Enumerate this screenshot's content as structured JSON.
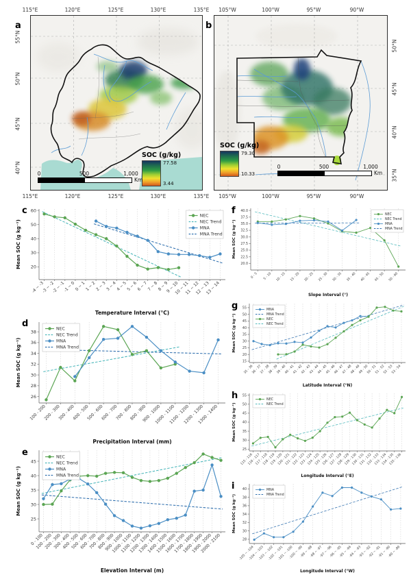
{
  "colors": {
    "nec": "#5ba553",
    "nec_trend": "#49b6ba",
    "mna": "#4a8ec4",
    "mna_trend": "#2f6fae",
    "sea": "#a9dbd2",
    "river": "#5b9bd5",
    "grid": "#d9d9d9",
    "spine": "#7f7f7f"
  },
  "maps": {
    "a": {
      "panel_label": "a",
      "top_ticks": [
        "115°E",
        "120°E",
        "125°E",
        "130°E",
        "135°E"
      ],
      "bottom_ticks": [
        "115°E",
        "120°E",
        "125°E",
        "130°E",
        "135°E"
      ],
      "left_ticks": [
        "55°N",
        "50°N",
        "45°N",
        "40°N"
      ],
      "legend": {
        "title": "SOC (g/kg)",
        "max": "77.58",
        "min": "3.44"
      },
      "scalebar": {
        "labels": [
          "0",
          "500",
          "1,000"
        ],
        "unit": "Km"
      }
    },
    "b": {
      "panel_label": "b",
      "top_ticks": [
        "105°W",
        "100°W",
        "95°W",
        "90°W"
      ],
      "bottom_ticks": [
        "105°W",
        "100°W",
        "95°W",
        "90°W"
      ],
      "right_ticks": [
        "50°N",
        "45°N",
        "40°N",
        "35°N"
      ],
      "legend": {
        "title": "SOC (g/kg)",
        "max": "79.30",
        "min": "10.33"
      },
      "scalebar": {
        "labels": [
          "0",
          "500",
          "1,000"
        ],
        "unit": "Km"
      }
    }
  },
  "chart_data": [
    {
      "panel": "c",
      "type": "line",
      "xlabel": "Temperature Interval (°C)",
      "ylabel": "Mean SOC (g kg⁻¹)",
      "ylim": [
        11,
        61
      ],
      "yticks": [
        20,
        30,
        40,
        50,
        60
      ],
      "ytick_decimals": 0,
      "categories": [
        "-4 ~ -3",
        "-3 ~ -2",
        "-2 ~ -1",
        "-1 ~ 0",
        "0 ~ 1",
        "1 ~ 2",
        "2 ~ 3",
        "3 ~ 4",
        "4 ~ 5",
        "5 ~ 6",
        "6 ~ 7",
        "7 ~ 8",
        "8 ~ 9",
        "9 ~ 10",
        "10 ~ 11",
        "11 ~ 12",
        "12 ~ 13",
        "13 ~ 14"
      ],
      "series": [
        {
          "name": "NEC",
          "color_key": "nec",
          "values": [
            57.5,
            55.5,
            54.8,
            50.3,
            46.0,
            42.8,
            40.0,
            34.8,
            27.5,
            21.2,
            18.5,
            19.5,
            18.2,
            19.4,
            null,
            null,
            null,
            null
          ]
        },
        {
          "name": "MNA",
          "color_key": "mna",
          "values": [
            null,
            null,
            null,
            null,
            null,
            52.5,
            48.7,
            47.5,
            44.5,
            41.8,
            38.8,
            30.8,
            29.2,
            28.8,
            28.8,
            28.0,
            26.8,
            29.2
          ]
        }
      ],
      "trends": [
        {
          "name": "NEC Trend",
          "color_key": "nec_trend",
          "from": [
            -0.2,
            59.2
          ],
          "to": [
            13.2,
            12.8
          ]
        },
        {
          "name": "MNA Trend",
          "color_key": "mna_trend",
          "from": [
            4.8,
            50.5
          ],
          "to": [
            17.2,
            22.8
          ]
        }
      ],
      "legend": {
        "position": "tr",
        "entries": [
          {
            "label": "NEC",
            "color_key": "nec",
            "dashed": false
          },
          {
            "label": "NEC Trend",
            "color_key": "nec_trend",
            "dashed": true
          },
          {
            "label": "MNA",
            "color_key": "mna",
            "dashed": false
          },
          {
            "label": "MNA Trend",
            "color_key": "mna_trend",
            "dashed": true
          }
        ]
      }
    },
    {
      "panel": "d",
      "type": "line",
      "xlabel": "Precipitation Interval (mm)",
      "ylabel": "Mean SOC (g kg⁻¹)",
      "ylim": [
        24.8,
        39.8
      ],
      "yticks": [
        26,
        28,
        30,
        32,
        34,
        36,
        38
      ],
      "ytick_decimals": 0,
      "categories": [
        "100 - 200",
        "200 - 300",
        "300 - 400",
        "400 - 500",
        "500 - 600",
        "600 - 700",
        "700 - 800",
        "800 - 900",
        "900 - 1000",
        "1000 - 1100",
        "1100 - 1200",
        "1200 - 1300",
        "1300 - 1400"
      ],
      "series": [
        {
          "name": "NEC",
          "color_key": "nec",
          "values": [
            25.4,
            31.4,
            28.9,
            34.5,
            39.0,
            38.4,
            33.8,
            34.5,
            31.3,
            32.0,
            null,
            null,
            null
          ]
        },
        {
          "name": "MNA",
          "color_key": "mna",
          "values": [
            null,
            null,
            29.7,
            33.2,
            36.6,
            36.8,
            39.0,
            37.0,
            34.5,
            32.4,
            30.7,
            30.4,
            36.5
          ]
        }
      ],
      "trends": [
        {
          "name": "NEC Trend",
          "color_key": "nec_trend",
          "from": [
            -0.2,
            30.6
          ],
          "to": [
            9.3,
            35.2
          ]
        },
        {
          "name": "MNA Trend",
          "color_key": "mna_trend",
          "from": [
            1.8,
            34.6
          ],
          "to": [
            12.2,
            33.9
          ]
        }
      ],
      "legend": {
        "position": "tl",
        "entries": [
          {
            "label": "NEC",
            "color_key": "nec",
            "dashed": false
          },
          {
            "label": "NEC Trend",
            "color_key": "nec_trend",
            "dashed": true
          },
          {
            "label": "MNA",
            "color_key": "mna",
            "dashed": false
          },
          {
            "label": "MNA Trend",
            "color_key": "mna_trend",
            "dashed": true
          }
        ]
      }
    },
    {
      "panel": "e",
      "type": "line",
      "xlabel": "Elevation Interval (m)",
      "ylabel": "Mean SOC (g kg⁻¹)",
      "ylim": [
        20.5,
        48.8
      ],
      "yticks": [
        25,
        30,
        35,
        40,
        45
      ],
      "ytick_decimals": 0,
      "categories": [
        "0 - 100",
        "100 - 200",
        "200 - 300",
        "300 - 400",
        "400 - 500",
        "500 - 600",
        "600 - 700",
        "700 - 800",
        "800 - 900",
        "900 - 1000",
        "1000 - 1100",
        "1100 - 1200",
        "1200 - 1300",
        "1300 - 1400",
        "1400 - 1500",
        "1500 - 1600",
        "1600 - 1700",
        "1700 - 1800",
        "1800 - 1900",
        "1900 - 2000",
        "2000 - 2100"
      ],
      "series": [
        {
          "name": "NEC",
          "color_key": "nec",
          "values": [
            30.0,
            30.1,
            34.7,
            38.5,
            39.8,
            40.0,
            39.8,
            40.8,
            41.1,
            41.0,
            39.4,
            38.3,
            38.0,
            38.3,
            39.1,
            40.8,
            42.8,
            44.5,
            47.5,
            46.3,
            45.3
          ]
        },
        {
          "name": "MNA",
          "color_key": "mna",
          "values": [
            32.0,
            36.9,
            37.2,
            38.8,
            39.0,
            37.1,
            34.1,
            30.1,
            26.1,
            24.4,
            22.5,
            21.8,
            22.6,
            23.4,
            24.7,
            25.2,
            26.3,
            34.6,
            35.0,
            43.7,
            32.8
          ]
        }
      ],
      "trends": [
        {
          "name": "NEC Trend",
          "color_key": "nec_trend",
          "from": [
            -0.2,
            33.8
          ],
          "to": [
            20.2,
            46.3
          ]
        },
        {
          "name": "MNA Trend",
          "color_key": "mna_trend",
          "from": [
            -0.2,
            33.3
          ],
          "to": [
            20.2,
            28.4
          ]
        }
      ],
      "legend": {
        "position": "tl",
        "entries": [
          {
            "label": "NEC",
            "color_key": "nec",
            "dashed": false
          },
          {
            "label": "NEC Trend",
            "color_key": "nec_trend",
            "dashed": true
          },
          {
            "label": "MNA",
            "color_key": "mna",
            "dashed": false
          },
          {
            "label": "MNA Trend",
            "color_key": "mna_trend",
            "dashed": true
          }
        ]
      }
    },
    {
      "panel": "f",
      "type": "line",
      "xlabel": "Slope Interval (°)",
      "ylabel": "Mean SOC (g kg⁻¹)",
      "ylim": [
        17.5,
        40.8
      ],
      "yticks": [
        20,
        22.5,
        25,
        27.5,
        30,
        32.5,
        35,
        37.5,
        40
      ],
      "ytick_decimals": 1,
      "categories": [
        "0 - 5",
        "5 - 10",
        "10 - 15",
        "15 - 20",
        "20 - 25",
        "25 - 30",
        "30 - 35",
        "35 - 40",
        "40 - 45",
        "45 - 50",
        "50 - 60"
      ],
      "series": [
        {
          "name": "NEC",
          "color_key": "nec",
          "values": [
            35.8,
            35.8,
            36.6,
            37.9,
            37.0,
            35.1,
            32.1,
            31.6,
            33.4,
            28.7,
            18.8
          ]
        },
        {
          "name": "MNA",
          "color_key": "mna",
          "values": [
            35.3,
            34.6,
            34.9,
            36.1,
            36.3,
            35.8,
            32.4,
            36.4,
            null,
            null,
            null
          ]
        }
      ],
      "trends": [
        {
          "name": "NEC Trend",
          "color_key": "nec_trend",
          "from": [
            -0.2,
            39.5
          ],
          "to": [
            10.2,
            26.5
          ]
        },
        {
          "name": "MNA Trend",
          "color_key": "mna_trend",
          "from": [
            -0.2,
            35.2
          ],
          "to": [
            7.2,
            35.3
          ]
        }
      ],
      "legend": {
        "position": "tr",
        "entries": [
          {
            "label": "NEC",
            "color_key": "nec",
            "dashed": false
          },
          {
            "label": "NEC Trend",
            "color_key": "nec_trend",
            "dashed": true
          },
          {
            "label": "MNA",
            "color_key": "mna",
            "dashed": false
          },
          {
            "label": "MNA Trend",
            "color_key": "mna_trend",
            "dashed": true
          }
        ]
      }
    },
    {
      "panel": "g",
      "type": "line",
      "xlabel": "Latitude Interval (°N)",
      "ylabel": "Mean SOC (g kg⁻¹)",
      "ylim": [
        14,
        58
      ],
      "yticks": [
        15,
        20,
        25,
        30,
        35,
        40,
        45,
        50,
        55
      ],
      "ytick_decimals": 0,
      "categories": [
        "35 - 36",
        "36 - 37",
        "37 - 38",
        "38 - 39",
        "39 - 40",
        "40 - 41",
        "41 - 42",
        "42 - 43",
        "43 - 44",
        "44 - 45",
        "45 - 46",
        "46 - 47",
        "47 - 48",
        "48 - 49",
        "49 - 50",
        "50 - 51",
        "51 - 52",
        "52 - 53",
        "53 - 54"
      ],
      "series": [
        {
          "name": "MNA",
          "color_key": "mna",
          "values": [
            30.0,
            27.8,
            27.0,
            28.4,
            28.2,
            29.4,
            28.9,
            32.7,
            37.7,
            41.1,
            40.2,
            43.6,
            45.5,
            48.7,
            48.3,
            null,
            null,
            null,
            null
          ]
        },
        {
          "name": "NEC",
          "color_key": "nec",
          "values": [
            null,
            null,
            null,
            20.1,
            20.2,
            22.2,
            27.3,
            26.0,
            25.2,
            27.7,
            32.5,
            37.3,
            42.0,
            45.5,
            48.2,
            55.0,
            55.6,
            52.8,
            52.2
          ]
        }
      ],
      "trends": [
        {
          "name": "MNA Trend",
          "color_key": "mna_trend",
          "from": [
            -0.2,
            23.6
          ],
          "to": [
            18.3,
            57.0
          ]
        },
        {
          "name": "NEC Trend",
          "color_key": "nec_trend",
          "from": [
            2.8,
            16.5
          ],
          "to": [
            18.3,
            56.0
          ]
        }
      ],
      "legend": {
        "position": "tl",
        "entries": [
          {
            "label": "MNA",
            "color_key": "mna",
            "dashed": false
          },
          {
            "label": "MNA Trend",
            "color_key": "mna_trend",
            "dashed": true
          },
          {
            "label": "NEC",
            "color_key": "nec",
            "dashed": false
          },
          {
            "label": "NEC Trend",
            "color_key": "nec_trend",
            "dashed": true
          }
        ]
      }
    },
    {
      "panel": "h",
      "type": "line",
      "xlabel": "Longitude Interval (°E)",
      "ylabel": "Mean SOC (g kg⁻¹)",
      "ylim": [
        24,
        56
      ],
      "yticks": [
        25,
        30,
        35,
        40,
        45,
        50,
        55
      ],
      "ytick_decimals": 0,
      "categories": [
        "115 - 116",
        "116 - 117",
        "117 - 118",
        "118 - 119",
        "119 - 120",
        "120 - 121",
        "121 - 122",
        "122 - 123",
        "123 - 124",
        "124 - 125",
        "125 - 126",
        "126 - 127",
        "127 - 128",
        "128 - 129",
        "129 - 130",
        "130 - 131",
        "131 - 132",
        "132 - 133",
        "133 - 134",
        "134 - 135",
        "135 - 136"
      ],
      "series": [
        {
          "name": "NEC",
          "color_key": "nec",
          "values": [
            28.2,
            31.3,
            31.8,
            26.0,
            30.5,
            33.0,
            31.0,
            29.6,
            31.4,
            35.0,
            39.7,
            42.8,
            43.1,
            45.3,
            41.1,
            38.7,
            37.0,
            42.0,
            46.8,
            45.0,
            54.0
          ]
        }
      ],
      "trends": [
        {
          "name": "NEC Trend",
          "color_key": "nec_trend",
          "from": [
            -0.2,
            26.7
          ],
          "to": [
            20.2,
            47.9
          ]
        }
      ],
      "legend": {
        "position": "tl",
        "entries": [
          {
            "label": "NEC",
            "color_key": "nec",
            "dashed": false
          },
          {
            "label": "NEC Trend",
            "color_key": "nec_trend",
            "dashed": true
          }
        ]
      }
    },
    {
      "panel": "i",
      "type": "line",
      "xlabel": "Longitude Interval (°W)",
      "ylabel": "Mean SOC (g kg⁻¹)",
      "ylim": [
        27,
        41.2
      ],
      "yticks": [
        28,
        30,
        32,
        34,
        36,
        38,
        40
      ],
      "ytick_decimals": 0,
      "categories": [
        "-105 ~ -104",
        "-104 ~ -103",
        "-103 ~ -102",
        "-102 ~ -101",
        "-101 ~ -100",
        "-100 ~ -99",
        "-99 ~ -98",
        "-98 ~ -97",
        "-97 ~ -96",
        "-96 ~ -95",
        "-95 ~ -94",
        "-94 ~ -93",
        "-93 ~ -92",
        "-92 ~ -91",
        "-91 ~ -90",
        "-90 ~ -89"
      ],
      "series": [
        {
          "name": "MNA",
          "color_key": "mna",
          "values": [
            27.9,
            29.4,
            28.5,
            28.5,
            29.8,
            32.2,
            35.8,
            39.1,
            38.3,
            40.3,
            40.3,
            39.1,
            38.2,
            37.5,
            35.1,
            35.3
          ]
        }
      ],
      "trends": [
        {
          "name": "MNA Trend",
          "color_key": "mna_trend",
          "from": [
            -0.2,
            29.3
          ],
          "to": [
            15.2,
            40.5
          ]
        }
      ],
      "legend": {
        "position": "tl",
        "entries": [
          {
            "label": "MNA",
            "color_key": "mna",
            "dashed": false
          },
          {
            "label": "MNA Trend",
            "color_key": "mna_trend",
            "dashed": true
          }
        ]
      }
    }
  ]
}
